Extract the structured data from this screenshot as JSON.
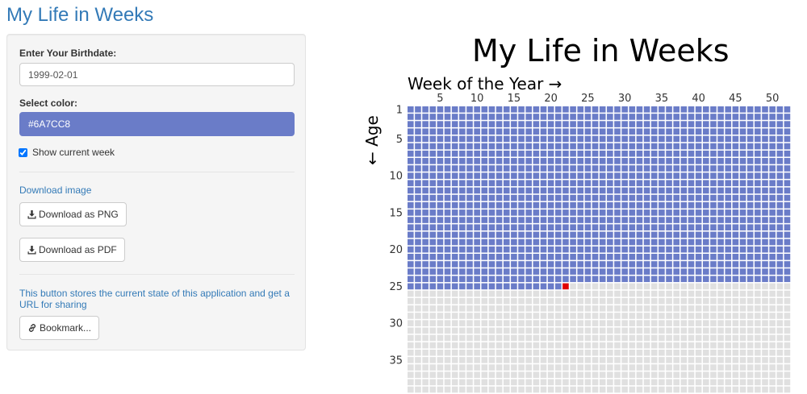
{
  "app": {
    "title": "My Life in Weeks"
  },
  "sidebar": {
    "birthdate_label": "Enter Your Birthdate:",
    "birthdate_value": "1999-02-01",
    "color_label": "Select color:",
    "color_value": "#6A7CC8",
    "show_current_week_label": "Show current week",
    "show_current_week_checked": true,
    "download_heading": "Download image",
    "download_png_label": "Download as PNG",
    "download_pdf_label": "Download as PDF",
    "bookmark_note": "This button stores the current state of this application and get a URL for sharing",
    "bookmark_label": "Bookmark..."
  },
  "chart_data": {
    "type": "heatmap",
    "title": "My Life in Weeks",
    "xlabel": "Week of the Year →",
    "ylabel": "← Age",
    "x_ticks": [
      5,
      10,
      15,
      20,
      25,
      30,
      35,
      40,
      45,
      50
    ],
    "y_ticks": [
      1,
      5,
      10,
      15,
      20,
      25,
      30,
      35
    ],
    "weeks_per_year": 52,
    "years_visible": 39,
    "lived_color": "#6A7CC8",
    "future_color": "#e0e0e0",
    "current_week_color": "#e00000",
    "current_age": 25,
    "current_week": 22
  },
  "icons": {
    "download": "download-icon",
    "bookmark": "link-icon"
  }
}
